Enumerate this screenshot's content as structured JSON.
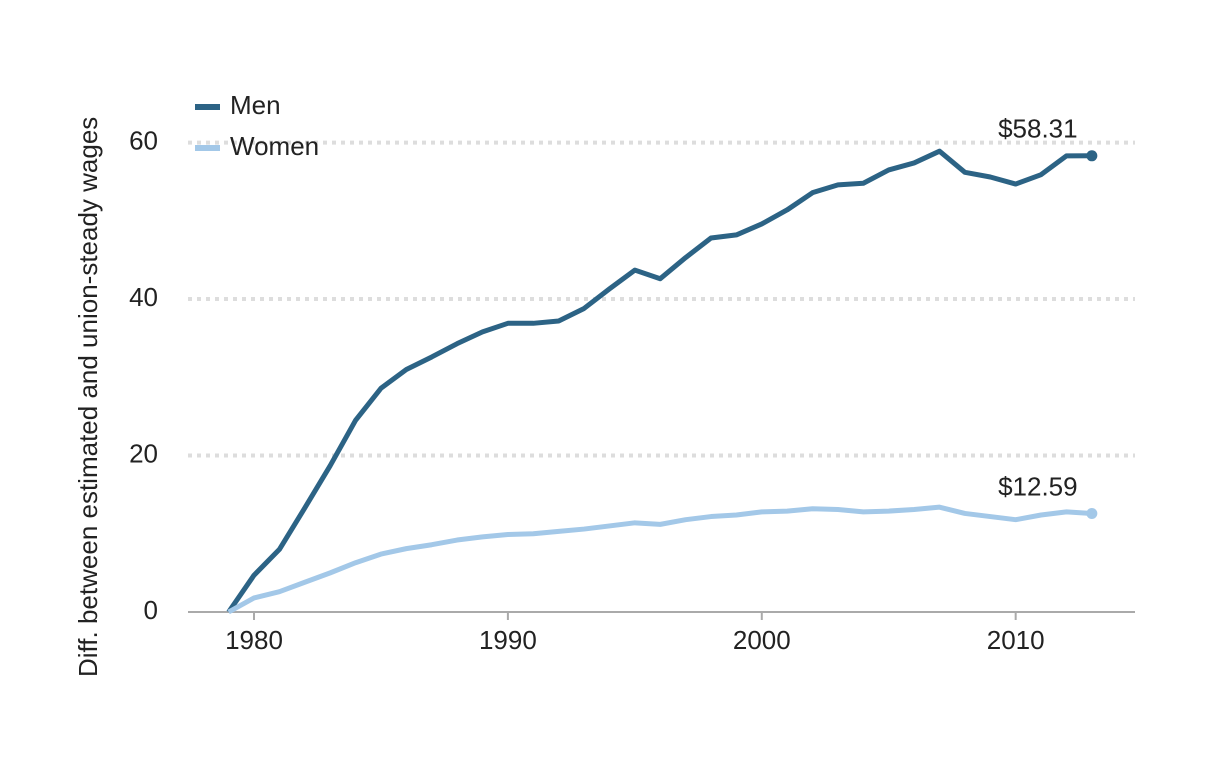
{
  "chart_data": {
    "type": "line",
    "ylabel": "Diff. between estimated and union-steady wages",
    "x": [
      1979,
      1980,
      1981,
      1982,
      1983,
      1984,
      1985,
      1986,
      1987,
      1988,
      1989,
      1990,
      1991,
      1992,
      1993,
      1994,
      1995,
      1996,
      1997,
      1998,
      1999,
      2000,
      2001,
      2002,
      2003,
      2004,
      2005,
      2006,
      2007,
      2008,
      2009,
      2010,
      2011,
      2012,
      2013
    ],
    "series": [
      {
        "name": "Men",
        "color": "#2c6385",
        "values": [
          0,
          4.7,
          8,
          13.3,
          18.7,
          24.5,
          28.6,
          31,
          32.6,
          34.3,
          35.8,
          36.9,
          36.9,
          37.2,
          38.8,
          41.3,
          43.7,
          42.6,
          45.3,
          47.8,
          48.2,
          49.6,
          51.4,
          53.6,
          54.6,
          54.8,
          56.5,
          57.4,
          58.9,
          56.2,
          55.6,
          54.7,
          55.9,
          58.3,
          58.31
        ],
        "value_labels": [
          null,
          null,
          null,
          null,
          null,
          null,
          null,
          null,
          null,
          null,
          null,
          null,
          null,
          null,
          null,
          null,
          null,
          null,
          null,
          null,
          null,
          null,
          null,
          null,
          null,
          null,
          null,
          null,
          null,
          null,
          null,
          null,
          null,
          null,
          "$58.31"
        ]
      },
      {
        "name": "Women",
        "color": "#a3c8e8",
        "values": [
          0,
          1.8,
          2.6,
          3.8,
          5,
          6.3,
          7.4,
          8.1,
          8.6,
          9.2,
          9.6,
          9.9,
          10,
          10.3,
          10.6,
          11,
          11.4,
          11.2,
          11.8,
          12.2,
          12.4,
          12.8,
          12.9,
          13.2,
          13.1,
          12.8,
          12.9,
          13.1,
          13.4,
          12.6,
          12.2,
          11.8,
          12.4,
          12.8,
          12.59
        ],
        "value_labels": [
          null,
          null,
          null,
          null,
          null,
          null,
          null,
          null,
          null,
          null,
          null,
          null,
          null,
          null,
          null,
          null,
          null,
          null,
          null,
          null,
          null,
          null,
          null,
          null,
          null,
          null,
          null,
          null,
          null,
          null,
          null,
          null,
          null,
          null,
          "$12.59"
        ]
      }
    ],
    "xlim": [
      1977.4,
      2014.7
    ],
    "xticks": [
      1980,
      1990,
      2000,
      2010
    ],
    "ylim": [
      0,
      68
    ],
    "yticks": [
      0,
      20,
      40,
      60
    ],
    "grid": true,
    "legend": "top-left"
  }
}
